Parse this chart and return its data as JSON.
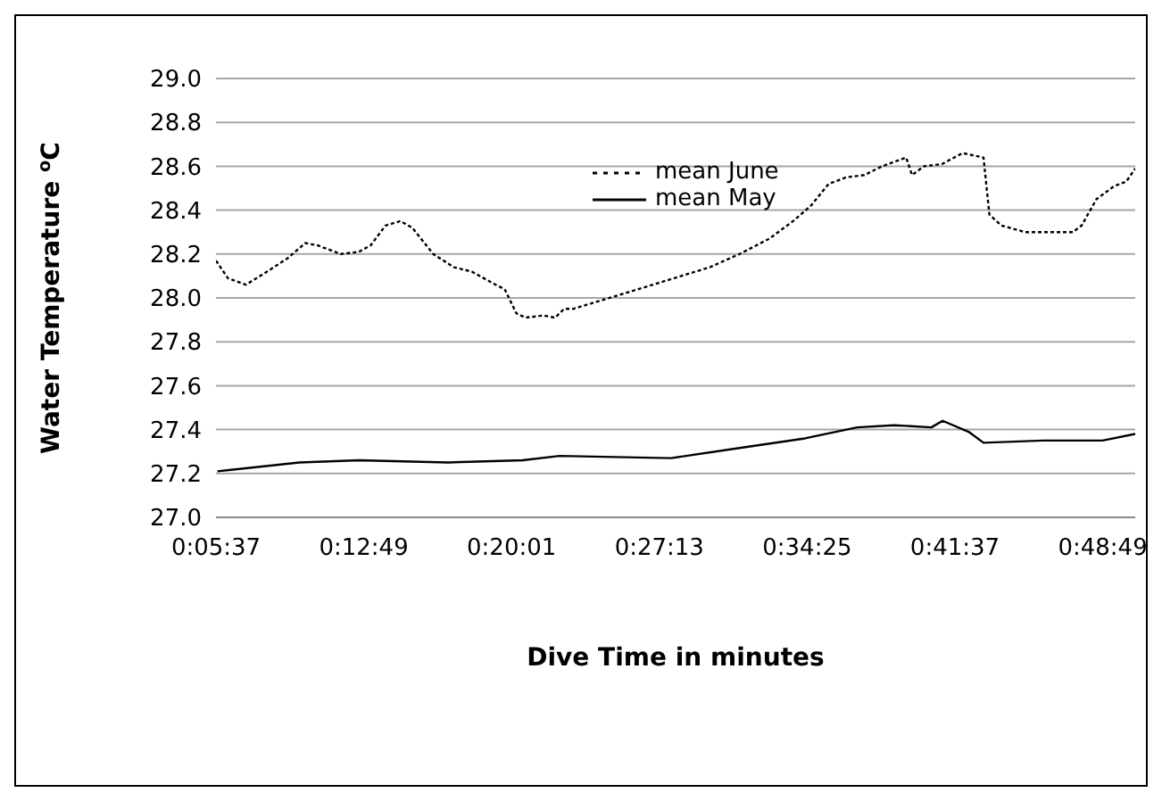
{
  "chart_data": {
    "type": "line",
    "xlabel": "Dive Time in minutes",
    "ylabel": "Water Temperature $^{o}$C",
    "xlim": [
      0.09361,
      0.84
    ],
    "xticks": [
      {
        "value": 0.09361,
        "label": "0:05:37"
      },
      {
        "value": 0.21361,
        "label": "0:12:49"
      },
      {
        "value": 0.33361,
        "label": "0:20:01"
      },
      {
        "value": 0.45361,
        "label": "0:27:13"
      },
      {
        "value": 0.57361,
        "label": "0:34:25"
      },
      {
        "value": 0.69361,
        "label": "0:41:37"
      },
      {
        "value": 0.81361,
        "label": "0:48:49"
      }
    ],
    "ylim": [
      27.0,
      29.0
    ],
    "yticks": [
      {
        "value": 27.0,
        "label": "27.0"
      },
      {
        "value": 27.2,
        "label": "27.2"
      },
      {
        "value": 27.4,
        "label": "27.4"
      },
      {
        "value": 27.6,
        "label": "27.6"
      },
      {
        "value": 27.8,
        "label": "27.8"
      },
      {
        "value": 28.0,
        "label": "28.0"
      },
      {
        "value": 28.2,
        "label": "28.2"
      },
      {
        "value": 28.4,
        "label": "28.4"
      },
      {
        "value": 28.6,
        "label": "28.6"
      },
      {
        "value": 28.8,
        "label": "28.8"
      },
      {
        "value": 29.0,
        "label": "29.0"
      }
    ],
    "grid": "y",
    "legend": "top",
    "marker": "none",
    "series": [
      {
        "name": "mean June",
        "color": "#000000",
        "line_style": "dotted",
        "x": [
          0.09361,
          0.1033,
          0.1178,
          0.1323,
          0.1516,
          0.1661,
          0.1758,
          0.1951,
          0.2096,
          0.2193,
          0.2313,
          0.2433,
          0.253,
          0.27,
          0.2868,
          0.3013,
          0.3207,
          0.328,
          0.3375,
          0.3448,
          0.3593,
          0.369,
          0.3762,
          0.3835,
          0.4366,
          0.4656,
          0.4946,
          0.5187,
          0.5429,
          0.5622,
          0.5766,
          0.5911,
          0.6056,
          0.6201,
          0.6346,
          0.654,
          0.6588,
          0.6685,
          0.683,
          0.6998,
          0.7168,
          0.7216,
          0.7313,
          0.7506,
          0.7893,
          0.7965,
          0.8085,
          0.823,
          0.8327,
          0.84
        ],
        "values": [
          28.17,
          28.09,
          28.06,
          28.11,
          28.18,
          28.25,
          28.24,
          28.2,
          28.21,
          28.24,
          28.33,
          28.35,
          28.32,
          28.2,
          28.14,
          28.12,
          28.06,
          28.04,
          27.93,
          27.91,
          27.92,
          27.91,
          27.95,
          27.95,
          28.04,
          28.09,
          28.14,
          28.2,
          28.27,
          28.35,
          28.42,
          28.52,
          28.55,
          28.56,
          28.6,
          28.64,
          28.56,
          28.6,
          28.61,
          28.66,
          28.64,
          28.38,
          28.33,
          28.3,
          28.3,
          28.33,
          28.45,
          28.51,
          28.53,
          28.59
        ]
      },
      {
        "name": "mean May",
        "color": "#000000",
        "line_style": "solid",
        "x": [
          0.0948,
          0.1613,
          0.2096,
          0.282,
          0.3425,
          0.3726,
          0.4632,
          0.5236,
          0.5719,
          0.6142,
          0.6443,
          0.6745,
          0.6836,
          0.7047,
          0.7168,
          0.7651,
          0.8135,
          0.84
        ],
        "values": [
          27.21,
          27.25,
          27.26,
          27.25,
          27.26,
          27.28,
          27.27,
          27.32,
          27.36,
          27.41,
          27.42,
          27.41,
          27.44,
          27.39,
          27.34,
          27.35,
          27.35,
          27.38
        ]
      }
    ]
  }
}
